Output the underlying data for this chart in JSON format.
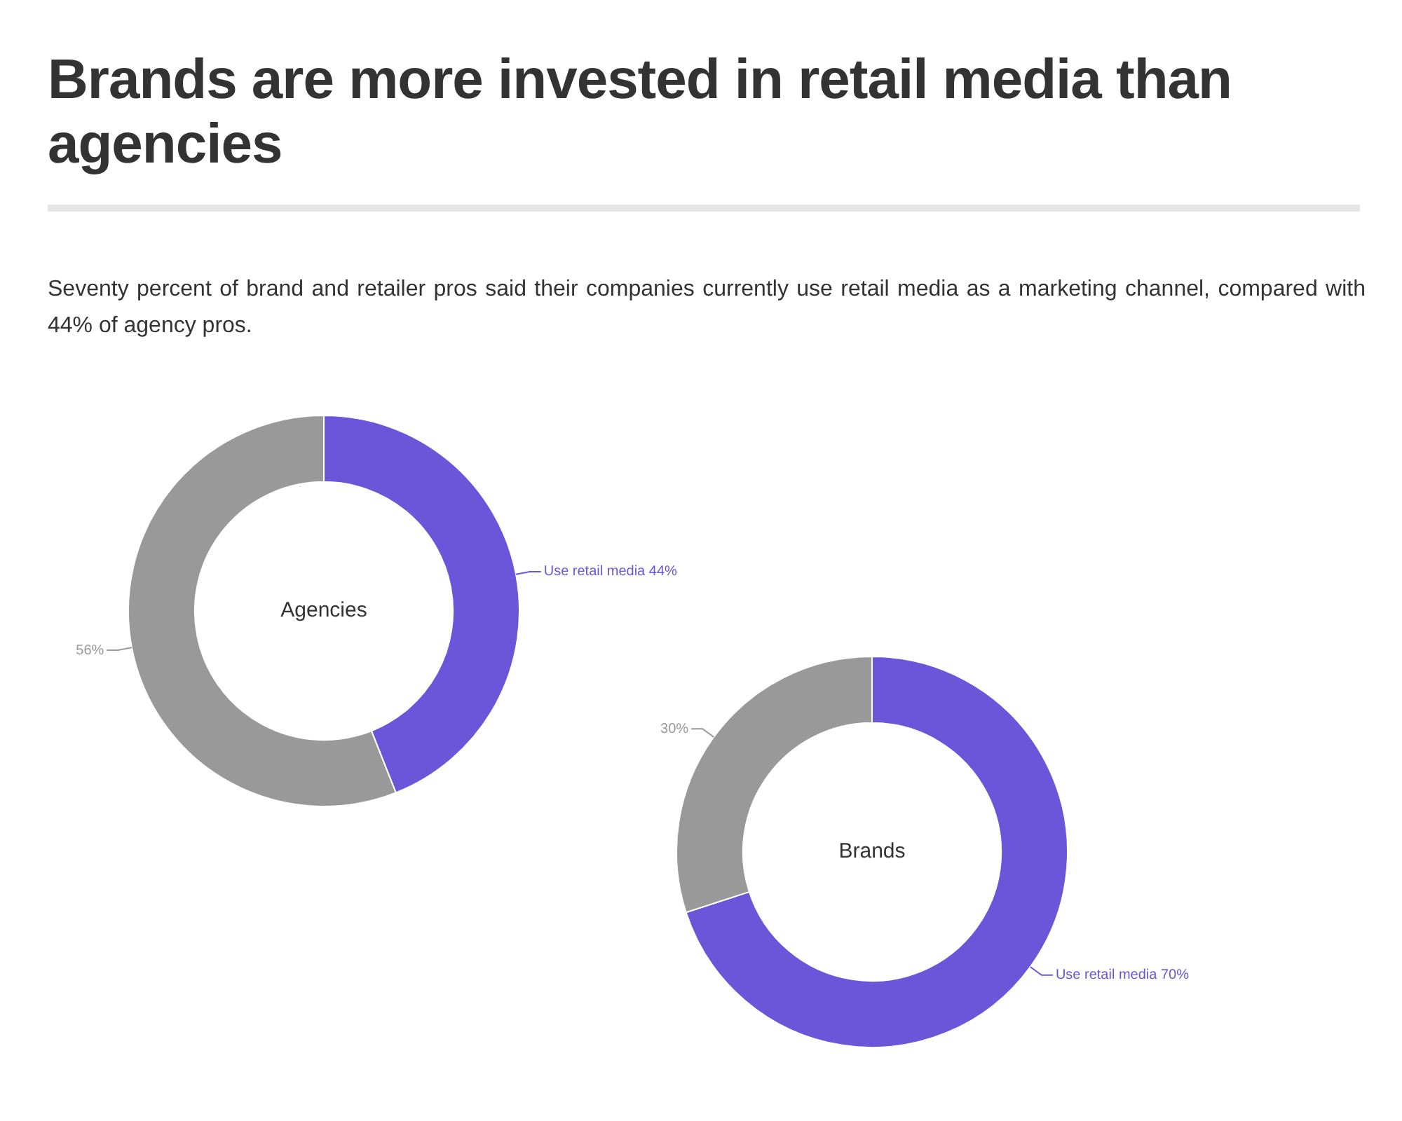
{
  "chart_data": [
    {
      "type": "donut",
      "title": "Brands are more invested in retail media than agencies",
      "subtitle": "Seventy percent of brand and retailer pros said their companies currently use retail media as a marketing channel, compared with 44% of agency pros.",
      "annotations": [
        "Agencies"
      ],
      "categories": [
        "Use retail media",
        null
      ],
      "values": [
        44,
        56
      ],
      "value_labels": [
        "44%",
        "56%"
      ],
      "colors": [
        "#6b55d9",
        "#999999"
      ],
      "legend": false
    },
    {
      "type": "donut",
      "annotations": [
        "Brands"
      ],
      "categories": [
        "Use retail media",
        null
      ],
      "values": [
        70,
        30
      ],
      "value_labels": [
        "70%",
        "30%"
      ],
      "colors": [
        "#6b55d9",
        "#999999"
      ],
      "legend": false
    }
  ]
}
